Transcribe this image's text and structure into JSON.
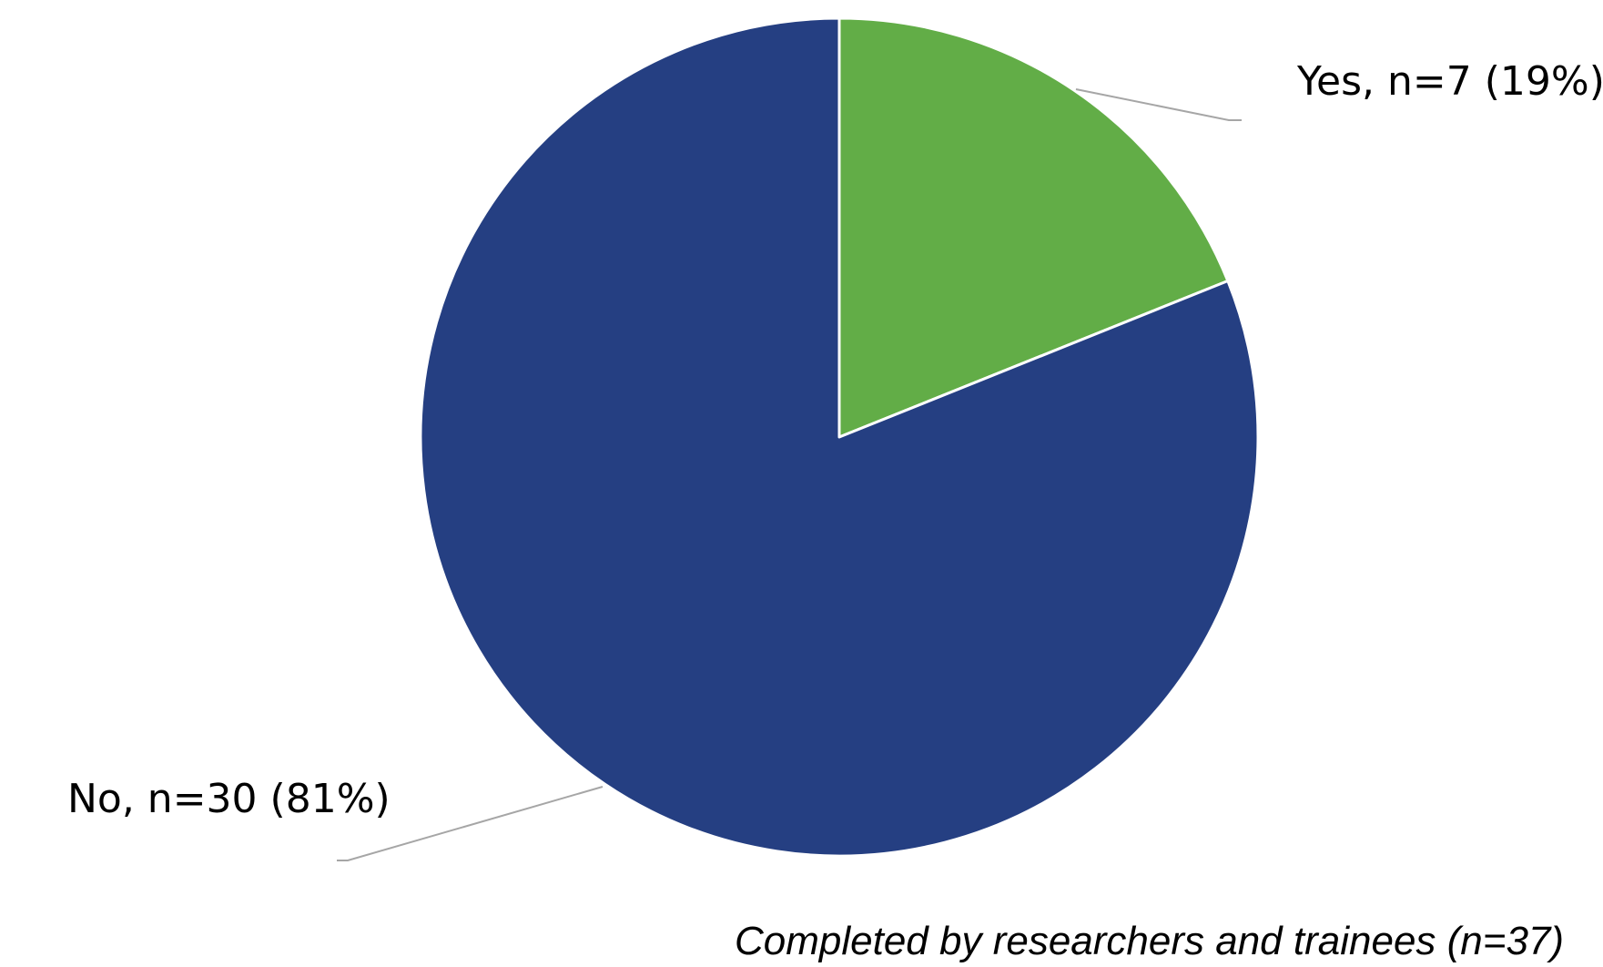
{
  "chart_data": {
    "type": "pie",
    "categories": [
      "Yes",
      "No"
    ],
    "values": [
      7,
      30
    ],
    "percentages": [
      19,
      81
    ],
    "colors": [
      "#62ad47",
      "#253f82"
    ],
    "labels": [
      "Yes, n=7 (19%)",
      "No, n=30 (81%)"
    ],
    "start_angle": "12 o'clock",
    "direction": "clockwise",
    "legend": "none"
  },
  "footnote": "Completed by researchers and trainees (n=37)"
}
